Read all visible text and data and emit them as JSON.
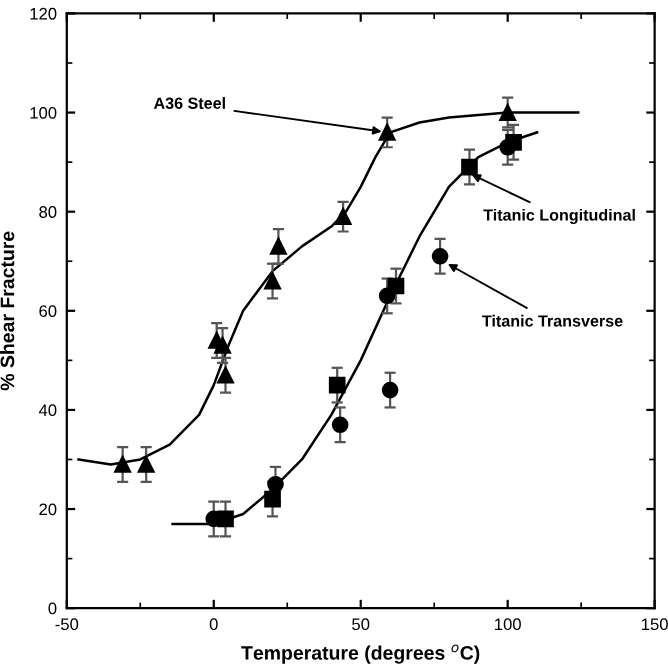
{
  "chart_data": {
    "type": "scatter",
    "xlabel": "Temperature (degrees $^{o}$C)",
    "ylabel": "% Shear Fracture",
    "xlim": [
      -50,
      150
    ],
    "xticks": [
      -50,
      0,
      50,
      100,
      150
    ],
    "ylim": [
      0,
      120
    ],
    "yticks": [
      0,
      20,
      40,
      60,
      80,
      100,
      120
    ],
    "grid": false,
    "legend": false,
    "series": [
      {
        "marker": "triangle",
        "color": "#000000",
        "x": [
          -31,
          -23,
          1,
          3,
          4,
          20,
          22,
          44,
          59,
          100
        ],
        "values": [
          29,
          29,
          54,
          53,
          47,
          66,
          73,
          79,
          96,
          100
        ],
        "errors": [
          3.5,
          3.5,
          3.5,
          3.5,
          3.5,
          3.5,
          3.5,
          3,
          3,
          3
        ]
      },
      {
        "marker": "square",
        "color": "#000000",
        "x": [
          4,
          20,
          42,
          62,
          87,
          102
        ],
        "values": [
          18,
          22,
          45,
          65,
          89,
          94
        ],
        "errors": [
          3.5,
          3.5,
          3.5,
          3.5,
          3.5,
          3.5
        ]
      },
      {
        "marker": "circle",
        "color": "#000000",
        "x": [
          0,
          21,
          43,
          60,
          59,
          77,
          100
        ],
        "values": [
          18,
          25,
          37,
          44,
          63,
          71,
          93
        ],
        "errors": [
          3.5,
          3.5,
          3.5,
          3.5,
          3.5,
          3.5,
          3.5
        ]
      },
      {
        "type": "line",
        "color": "#000000",
        "x": [
          -46,
          -35,
          -25,
          -15,
          -5,
          0,
          5,
          10,
          20,
          30,
          40,
          45,
          50,
          55,
          60,
          70,
          80,
          100,
          124
        ],
        "values": [
          30,
          29,
          30,
          33,
          39,
          45,
          53,
          60,
          68,
          73,
          77,
          80,
          85,
          91,
          96,
          98,
          99,
          100,
          100
        ]
      },
      {
        "type": "line",
        "color": "#000000",
        "x": [
          -14,
          0,
          10,
          20,
          30,
          40,
          50,
          60,
          70,
          80,
          90,
          100,
          110
        ],
        "values": [
          17,
          17,
          19,
          24,
          30,
          39,
          50,
          63,
          75,
          85,
          91,
          94,
          96
        ]
      }
    ],
    "annotations": [
      {
        "text": "A36 Steel",
        "x": 59,
        "y": 96
      },
      {
        "text": "Titanic Longitudinal",
        "x": 86,
        "y": 88
      },
      {
        "text": "Titanic Transverse",
        "x": 78,
        "y": 70
      }
    ]
  }
}
